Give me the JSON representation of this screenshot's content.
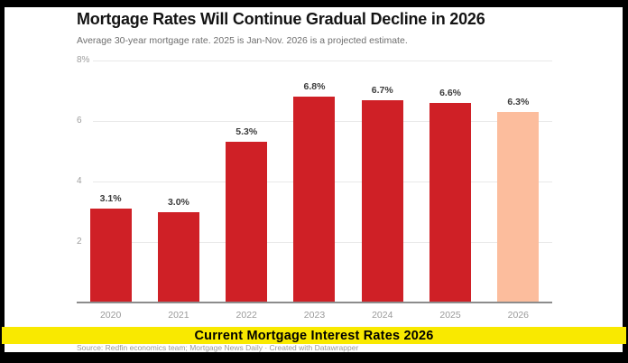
{
  "header": {
    "title": "Mortgage Rates Will Continue Gradual Decline in 2026",
    "subtitle": "Average 30-year mortgage rate. 2025 is Jan-Nov. 2026 is a projected estimate."
  },
  "chart_data": {
    "type": "bar",
    "title": "Mortgage Rates Will Continue Gradual Decline in 2026",
    "subtitle": "Average 30-year mortgage rate. 2025 is Jan-Nov. 2026 is a projected estimate.",
    "categories": [
      "2020",
      "2021",
      "2022",
      "2023",
      "2024",
      "2025",
      "2026"
    ],
    "values": [
      3.1,
      3.0,
      5.3,
      6.8,
      6.7,
      6.6,
      6.3
    ],
    "value_labels": [
      "3.1%",
      "3.0%",
      "5.3%",
      "6.8%",
      "6.7%",
      "6.6%",
      "6.3%"
    ],
    "bar_colors": [
      "#cf2026",
      "#cf2026",
      "#cf2026",
      "#cf2026",
      "#cf2026",
      "#cf2026",
      "#fcbd9d"
    ],
    "bar_color_actual": "#cf2026",
    "bar_color_projection": "#fcbd9d",
    "ylim": [
      0,
      8
    ],
    "yticks": [
      {
        "value": 8,
        "label": "8%"
      },
      {
        "value": 6,
        "label": "6"
      },
      {
        "value": 4,
        "label": "4"
      },
      {
        "value": 2,
        "label": "2"
      }
    ],
    "grid": true,
    "legend": "none",
    "xlabel": "",
    "ylabel": ""
  },
  "banner": {
    "label": "Current Mortgage Interest Rates 2026",
    "background": "#f9e900",
    "text_color": "#000000"
  },
  "footer": {
    "source": "Source: Redfin economics team; Mortgage News Daily · Created with Datawrapper"
  },
  "frame": {
    "border_color": "#000000",
    "canvas_color": "#ffffff"
  }
}
